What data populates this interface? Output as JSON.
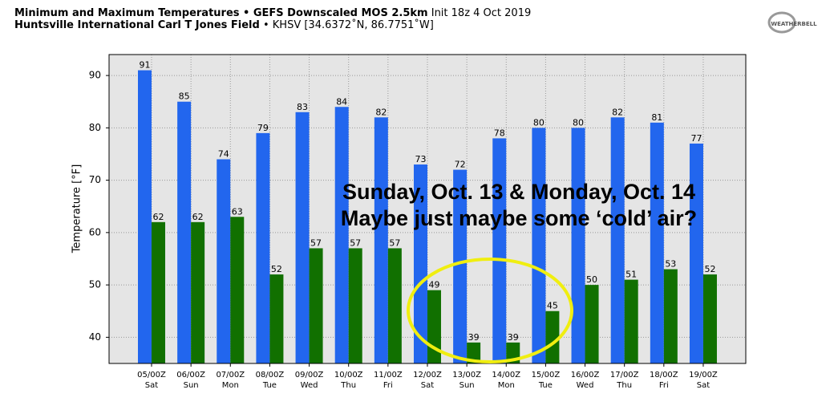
{
  "chart_data": {
    "type": "bar",
    "title": "Minimum and Maximum Temperatures • GEFS Downscaled MOS 2.5km",
    "title_note": "Init 18z 4 Oct 2019",
    "subtitle": "Huntsville International Carl T Jones Field",
    "subtitle_note": "• KHSV [34.6372˚N, 86.7751˚W]",
    "logo": "WEATHERBELL",
    "ylabel": "Temperature [°F]",
    "annotation": [
      "Sunday, Oct. 13 & Monday, Oct. 14",
      "Maybe just maybe some ‘cold’ air?"
    ],
    "categories": [
      "05/00Z",
      "06/00Z",
      "07/00Z",
      "08/00Z",
      "09/00Z",
      "10/00Z",
      "11/00Z",
      "12/00Z",
      "13/00Z",
      "14/00Z",
      "15/00Z",
      "16/00Z",
      "17/00Z",
      "18/00Z",
      "19/00Z"
    ],
    "category_days": [
      "Sat",
      "Sun",
      "Mon",
      "Tue",
      "Wed",
      "Thu",
      "Fri",
      "Sat",
      "Sun",
      "Mon",
      "Tue",
      "Wed",
      "Thu",
      "Fri",
      "Sat"
    ],
    "series": [
      {
        "color": "#2266ee",
        "values": [
          91,
          85,
          74,
          79,
          83,
          84,
          82,
          73,
          72,
          78,
          80,
          80,
          82,
          81,
          77
        ]
      },
      {
        "color": "#117000",
        "values": [
          62,
          62,
          63,
          52,
          57,
          57,
          57,
          49,
          39,
          39,
          45,
          50,
          51,
          53,
          52
        ]
      }
    ],
    "ylim": [
      35,
      94
    ],
    "yticks": [
      40,
      50,
      60,
      70,
      80,
      90
    ],
    "grid": true
  }
}
